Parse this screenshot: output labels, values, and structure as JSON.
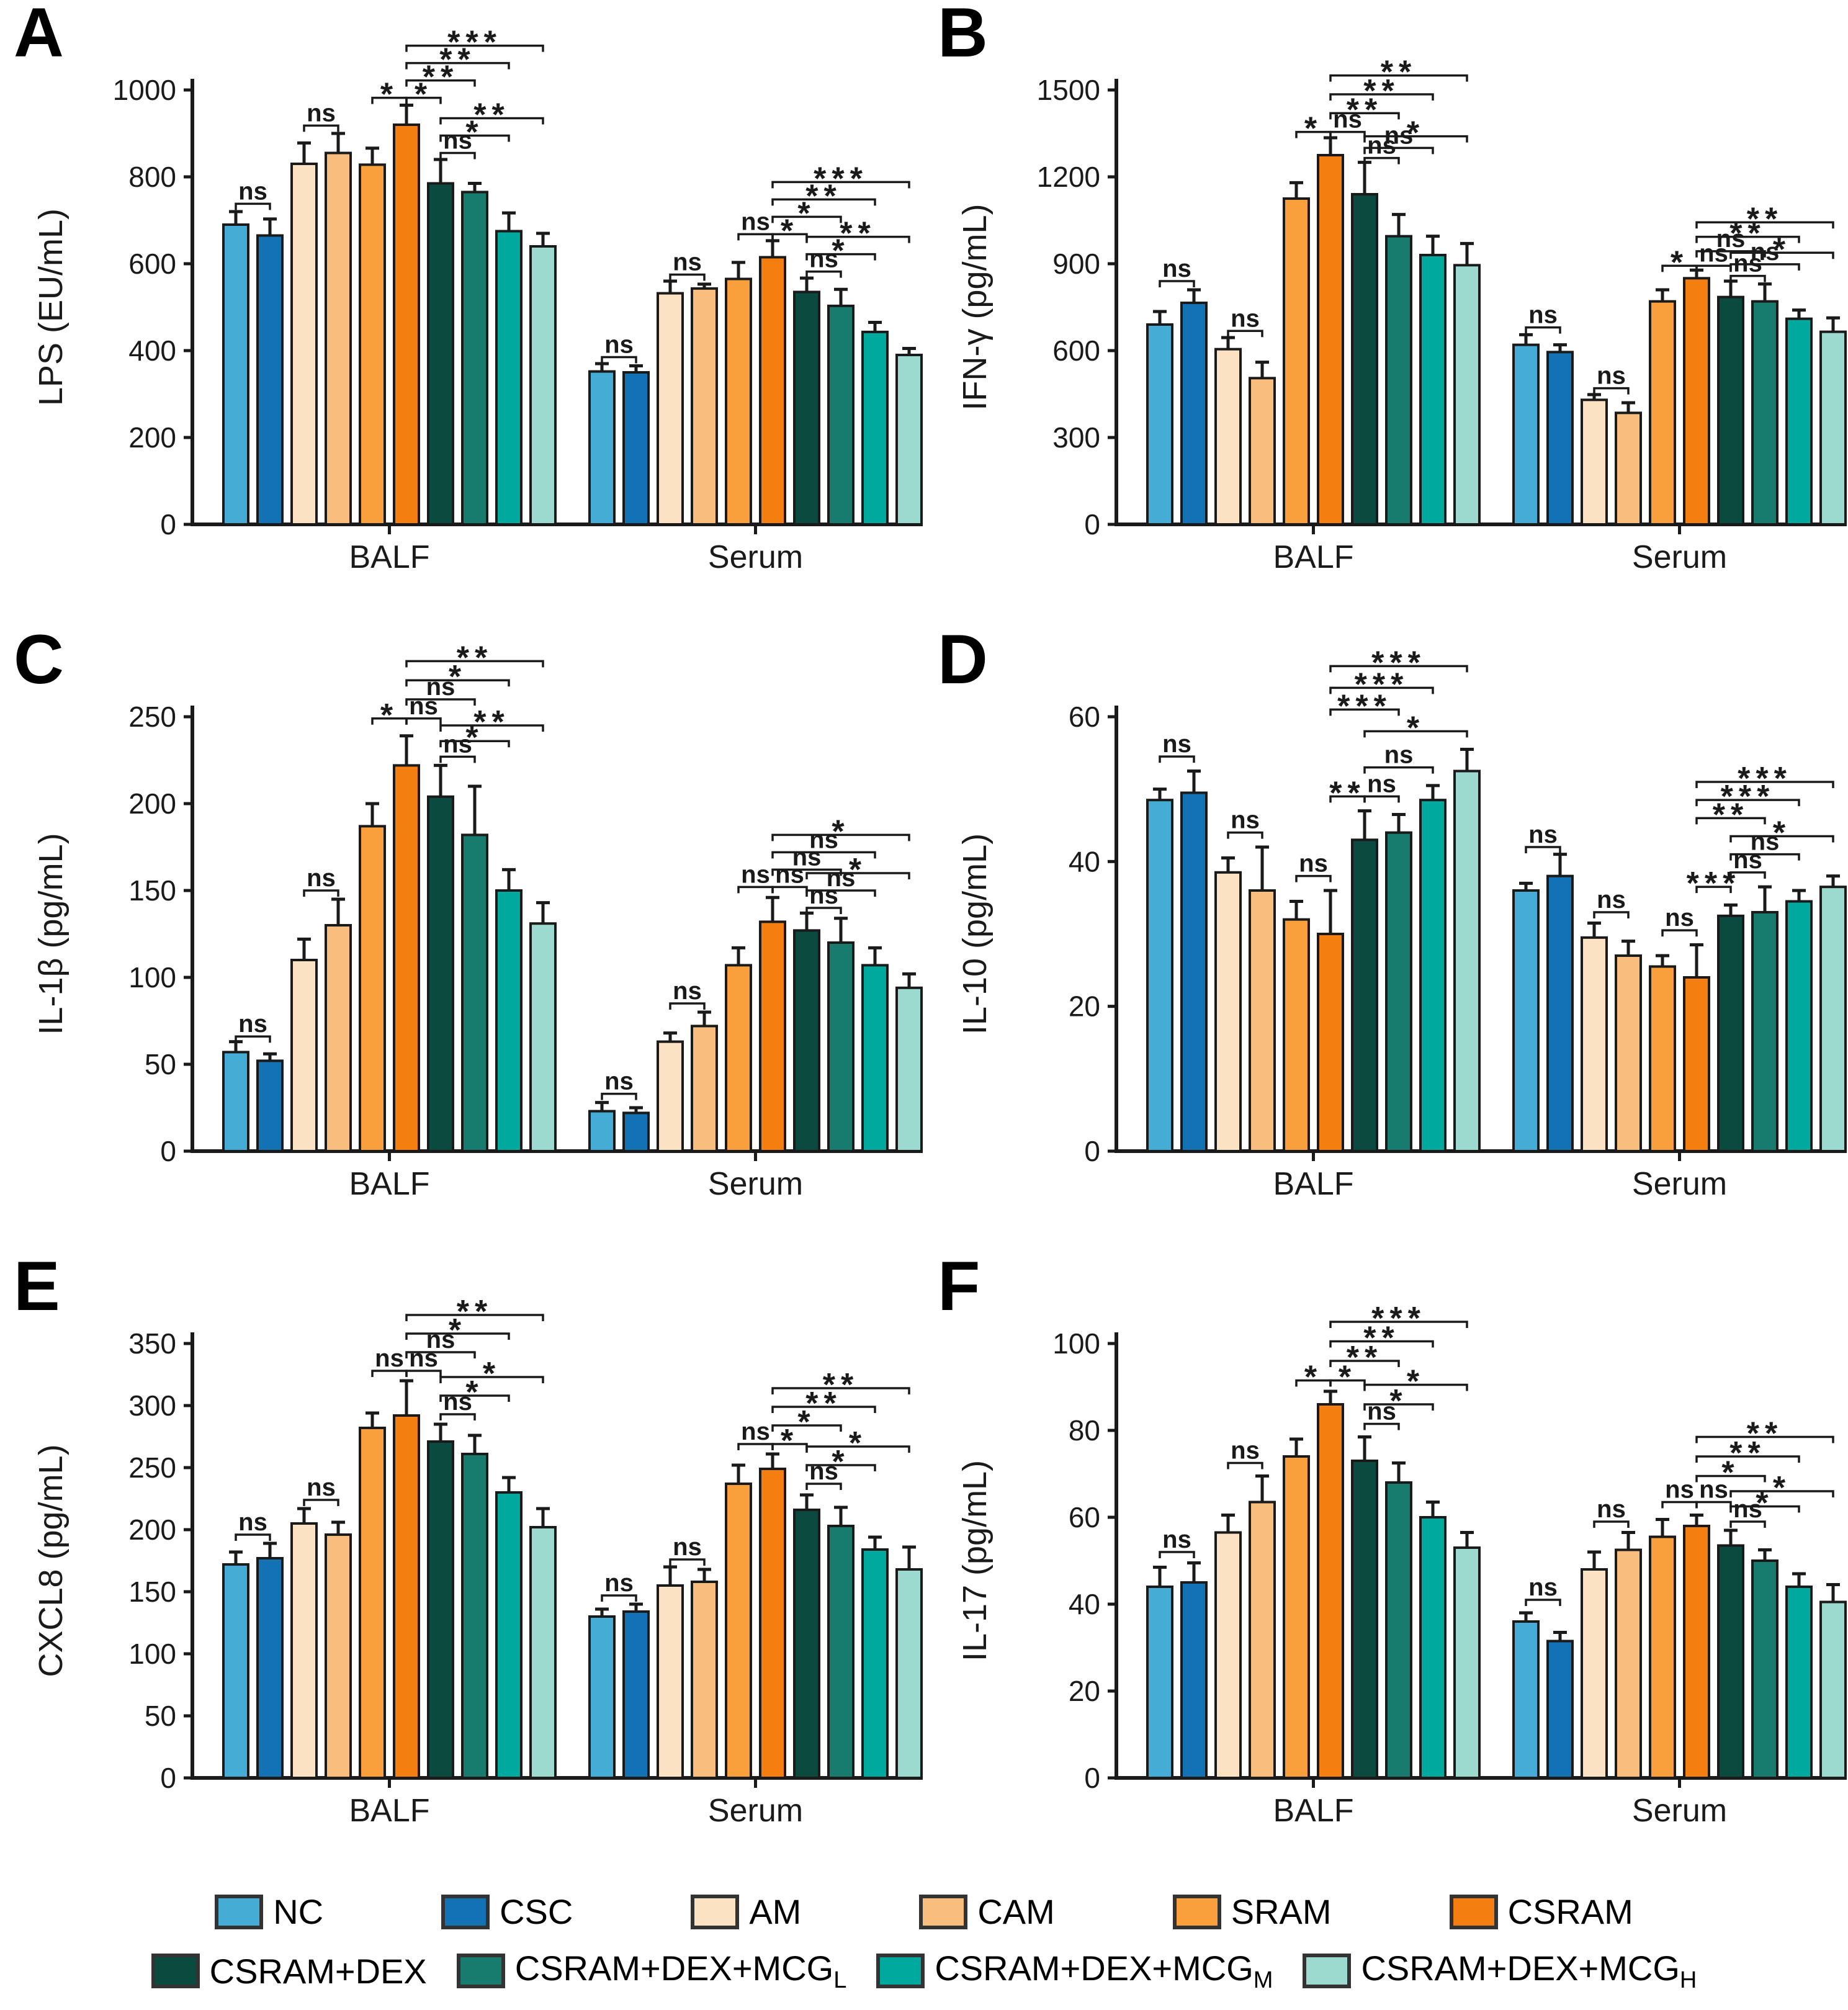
{
  "figure_title": "",
  "categories": [
    "BALF",
    "Serum"
  ],
  "groups": [
    {
      "name": "NC",
      "color": "#45ADD5"
    },
    {
      "name": "CSC",
      "color": "#1272B4"
    },
    {
      "name": "AM",
      "color": "#FBE2C3"
    },
    {
      "name": "CAM",
      "color": "#F9BE7D"
    },
    {
      "name": "SRAM",
      "color": "#F9A03C"
    },
    {
      "name": "CSRAM",
      "color": "#F57E11"
    },
    {
      "name": "CSRAM+DEX",
      "color": "#0B4A3F"
    },
    {
      "name": "CSRAM+DEX+MCG",
      "sub": "L",
      "color": "#177C6E"
    },
    {
      "name": "CSRAM+DEX+MCG",
      "sub": "M",
      "color": "#00A99D"
    },
    {
      "name": "CSRAM+DEX+MCG",
      "sub": "H",
      "color": "#9CDACF"
    }
  ],
  "chart_data": [
    {
      "type": "bar",
      "letter": "A",
      "ylabel": "LPS (EU/mL)",
      "ylim": [
        0,
        1000
      ],
      "yticks": [
        0,
        200,
        400,
        600,
        800,
        1000
      ],
      "categories": [
        "BALF",
        "Serum"
      ],
      "balf": [
        690,
        665,
        830,
        855,
        828,
        920,
        785,
        765,
        675,
        640
      ],
      "balf_err": [
        30,
        38,
        48,
        45,
        38,
        45,
        55,
        20,
        42,
        30
      ],
      "serum": [
        352,
        350,
        532,
        543,
        565,
        615,
        535,
        503,
        443,
        390
      ],
      "serum_err": [
        18,
        15,
        28,
        10,
        38,
        38,
        32,
        38,
        22,
        15
      ],
      "significance": [
        {
          "from": 1,
          "to": 2,
          "label": "ns",
          "y": 738
        },
        {
          "from": 3,
          "to": 4,
          "label": "ns",
          "y": 918
        },
        {
          "from": 5,
          "to": 6,
          "label": "*",
          "y": 982
        },
        {
          "from": 6,
          "to": 7,
          "label": "*",
          "y": 982
        },
        {
          "from": 6,
          "to": 8,
          "label": "**",
          "y": 1022
        },
        {
          "from": 6,
          "to": 9,
          "label": "**",
          "y": 1062
        },
        {
          "from": 6,
          "to": 10,
          "label": "***",
          "y": 1102
        },
        {
          "from": 7,
          "to": 8,
          "label": "ns",
          "y": 855
        },
        {
          "from": 7,
          "to": 9,
          "label": "*",
          "y": 895
        },
        {
          "from": 7,
          "to": 10,
          "label": "**",
          "y": 935
        },
        {
          "from": 11,
          "to": 12,
          "label": "ns",
          "y": 385
        },
        {
          "from": 13,
          "to": 14,
          "label": "ns",
          "y": 575
        },
        {
          "from": 15,
          "to": 16,
          "label": "ns",
          "y": 668
        },
        {
          "from": 16,
          "to": 17,
          "label": "*",
          "y": 668
        },
        {
          "from": 16,
          "to": 18,
          "label": "*",
          "y": 708
        },
        {
          "from": 16,
          "to": 19,
          "label": "**",
          "y": 748
        },
        {
          "from": 16,
          "to": 20,
          "label": "***",
          "y": 788
        },
        {
          "from": 17,
          "to": 18,
          "label": "ns",
          "y": 582
        },
        {
          "from": 17,
          "to": 19,
          "label": "*",
          "y": 622
        },
        {
          "from": 17,
          "to": 20,
          "label": "**",
          "y": 662
        }
      ]
    },
    {
      "type": "bar",
      "letter": "B",
      "ylabel": "IFN-γ (pg/mL)",
      "ylim": [
        0,
        1500
      ],
      "yticks": [
        0,
        300,
        600,
        900,
        1200,
        1500
      ],
      "categories": [
        "BALF",
        "Serum"
      ],
      "balf": [
        690,
        765,
        605,
        505,
        1125,
        1275,
        1140,
        995,
        930,
        895
      ],
      "balf_err": [
        45,
        45,
        40,
        55,
        55,
        60,
        110,
        75,
        65,
        75
      ],
      "serum": [
        620,
        595,
        430,
        385,
        770,
        850,
        785,
        770,
        710,
        665
      ],
      "serum_err": [
        35,
        25,
        18,
        35,
        40,
        28,
        55,
        60,
        30,
        48
      ],
      "significance": [
        {
          "from": 1,
          "to": 2,
          "label": "ns",
          "y": 840
        },
        {
          "from": 3,
          "to": 4,
          "label": "ns",
          "y": 668
        },
        {
          "from": 5,
          "to": 6,
          "label": "*",
          "y": 1355
        },
        {
          "from": 6,
          "to": 7,
          "label": "ns",
          "y": 1355
        },
        {
          "from": 6,
          "to": 8,
          "label": "**",
          "y": 1420
        },
        {
          "from": 6,
          "to": 9,
          "label": "**",
          "y": 1485
        },
        {
          "from": 6,
          "to": 10,
          "label": "**",
          "y": 1550
        },
        {
          "from": 7,
          "to": 8,
          "label": "ns",
          "y": 1265
        },
        {
          "from": 7,
          "to": 9,
          "label": "ns",
          "y": 1300
        },
        {
          "from": 7,
          "to": 10,
          "label": "*",
          "y": 1340
        },
        {
          "from": 11,
          "to": 12,
          "label": "ns",
          "y": 680
        },
        {
          "from": 13,
          "to": 14,
          "label": "ns",
          "y": 470
        },
        {
          "from": 15,
          "to": 16,
          "label": "*",
          "y": 893
        },
        {
          "from": 16,
          "to": 17,
          "label": "ns",
          "y": 893
        },
        {
          "from": 16,
          "to": 18,
          "label": "ns",
          "y": 943
        },
        {
          "from": 16,
          "to": 19,
          "label": "**",
          "y": 993
        },
        {
          "from": 16,
          "to": 20,
          "label": "**",
          "y": 1043
        },
        {
          "from": 17,
          "to": 18,
          "label": "ns",
          "y": 858
        },
        {
          "from": 17,
          "to": 19,
          "label": "ns",
          "y": 898
        },
        {
          "from": 17,
          "to": 20,
          "label": "*",
          "y": 938
        }
      ]
    },
    {
      "type": "bar",
      "letter": "C",
      "ylabel": "IL-1β (pg/mL)",
      "ylim": [
        0,
        250
      ],
      "yticks": [
        0,
        50,
        100,
        150,
        200,
        250
      ],
      "categories": [
        "BALF",
        "Serum"
      ],
      "balf": [
        57,
        52,
        110,
        130,
        187,
        222,
        204,
        182,
        150,
        131
      ],
      "balf_err": [
        6,
        4,
        12,
        15,
        13,
        17,
        18,
        28,
        12,
        12
      ],
      "serum": [
        23,
        22,
        63,
        72,
        107,
        132,
        127,
        120,
        107,
        94
      ],
      "serum_err": [
        5,
        3,
        5,
        8,
        10,
        14,
        10,
        14,
        10,
        8
      ],
      "significance": [
        {
          "from": 1,
          "to": 2,
          "label": "ns",
          "y": 66
        },
        {
          "from": 3,
          "to": 4,
          "label": "ns",
          "y": 150
        },
        {
          "from": 5,
          "to": 6,
          "label": "*",
          "y": 249
        },
        {
          "from": 6,
          "to": 7,
          "label": "ns",
          "y": 249
        },
        {
          "from": 6,
          "to": 8,
          "label": "ns",
          "y": 260
        },
        {
          "from": 6,
          "to": 9,
          "label": "*",
          "y": 271
        },
        {
          "from": 6,
          "to": 10,
          "label": "**",
          "y": 282
        },
        {
          "from": 7,
          "to": 8,
          "label": "ns",
          "y": 227
        },
        {
          "from": 7,
          "to": 9,
          "label": "*",
          "y": 236
        },
        {
          "from": 7,
          "to": 10,
          "label": "**",
          "y": 245
        },
        {
          "from": 11,
          "to": 12,
          "label": "ns",
          "y": 33
        },
        {
          "from": 13,
          "to": 14,
          "label": "ns",
          "y": 85
        },
        {
          "from": 15,
          "to": 16,
          "label": "ns",
          "y": 152
        },
        {
          "from": 16,
          "to": 17,
          "label": "ns",
          "y": 152
        },
        {
          "from": 16,
          "to": 18,
          "label": "ns",
          "y": 162
        },
        {
          "from": 16,
          "to": 19,
          "label": "ns",
          "y": 172
        },
        {
          "from": 16,
          "to": 20,
          "label": "*",
          "y": 182
        },
        {
          "from": 17,
          "to": 18,
          "label": "ns",
          "y": 140
        },
        {
          "from": 17,
          "to": 19,
          "label": "ns",
          "y": 150
        },
        {
          "from": 17,
          "to": 20,
          "label": "*",
          "y": 160
        }
      ]
    },
    {
      "type": "bar",
      "letter": "D",
      "ylabel": "IL-10 (pg/mL)",
      "ylim": [
        0,
        60
      ],
      "yticks": [
        0,
        20,
        40,
        60
      ],
      "categories": [
        "BALF",
        "Serum"
      ],
      "balf": [
        48.5,
        49.5,
        38.5,
        36,
        32,
        30,
        43,
        44,
        48.5,
        52.5
      ],
      "balf_err": [
        1.5,
        3,
        2,
        6,
        2.5,
        6,
        4,
        2.5,
        2,
        3
      ],
      "serum": [
        36,
        38,
        29.5,
        27,
        25.5,
        24,
        32.5,
        33,
        34.5,
        36.5
      ],
      "serum_err": [
        1,
        3,
        2,
        2,
        1.5,
        4.5,
        1.5,
        3.5,
        1.5,
        1.5
      ],
      "significance": [
        {
          "from": 1,
          "to": 2,
          "label": "ns",
          "y": 54.5
        },
        {
          "from": 3,
          "to": 4,
          "label": "ns",
          "y": 44
        },
        {
          "from": 5,
          "to": 6,
          "label": "ns",
          "y": 38
        },
        {
          "from": 6,
          "to": 7,
          "label": "**",
          "y": 49
        },
        {
          "from": 7,
          "to": 8,
          "label": "ns",
          "y": 49
        },
        {
          "from": 7,
          "to": 9,
          "label": "ns",
          "y": 53
        },
        {
          "from": 7,
          "to": 10,
          "label": "*",
          "y": 58
        },
        {
          "from": 6,
          "to": 8,
          "label": "***",
          "y": 61
        },
        {
          "from": 6,
          "to": 9,
          "label": "***",
          "y": 64
        },
        {
          "from": 6,
          "to": 10,
          "label": "***",
          "y": 67
        },
        {
          "from": 11,
          "to": 12,
          "label": "ns",
          "y": 42
        },
        {
          "from": 13,
          "to": 14,
          "label": "ns",
          "y": 33
        },
        {
          "from": 15,
          "to": 16,
          "label": "ns",
          "y": 30.5
        },
        {
          "from": 16,
          "to": 17,
          "label": "***",
          "y": 36.5
        },
        {
          "from": 17,
          "to": 18,
          "label": "ns",
          "y": 38.5
        },
        {
          "from": 17,
          "to": 19,
          "label": "ns",
          "y": 41
        },
        {
          "from": 17,
          "to": 20,
          "label": "*",
          "y": 43.5
        },
        {
          "from": 16,
          "to": 18,
          "label": "**",
          "y": 46
        },
        {
          "from": 16,
          "to": 19,
          "label": "***",
          "y": 48.5
        },
        {
          "from": 16,
          "to": 20,
          "label": "***",
          "y": 51
        }
      ]
    },
    {
      "type": "bar",
      "letter": "E",
      "ylabel": "CXCL8 (pg/mL)",
      "ylim": [
        0,
        350
      ],
      "yticks": [
        0,
        50,
        100,
        150,
        200,
        250,
        300,
        350
      ],
      "categories": [
        "BALF",
        "Serum"
      ],
      "balf": [
        172,
        177,
        205,
        196,
        282,
        292,
        271,
        261,
        230,
        202
      ],
      "balf_err": [
        10,
        12,
        12,
        10,
        12,
        28,
        14,
        15,
        12,
        15
      ],
      "serum": [
        130,
        134,
        155,
        158,
        237,
        249,
        216,
        203,
        184,
        168
      ],
      "serum_err": [
        6,
        6,
        15,
        10,
        15,
        12,
        12,
        15,
        10,
        18
      ],
      "significance": [
        {
          "from": 1,
          "to": 2,
          "label": "ns",
          "y": 196
        },
        {
          "from": 3,
          "to": 4,
          "label": "ns",
          "y": 224
        },
        {
          "from": 5,
          "to": 6,
          "label": "ns",
          "y": 328
        },
        {
          "from": 6,
          "to": 7,
          "label": "ns",
          "y": 328
        },
        {
          "from": 6,
          "to": 8,
          "label": "ns",
          "y": 343
        },
        {
          "from": 6,
          "to": 9,
          "label": "*",
          "y": 358
        },
        {
          "from": 6,
          "to": 10,
          "label": "**",
          "y": 373
        },
        {
          "from": 7,
          "to": 8,
          "label": "ns",
          "y": 293
        },
        {
          "from": 7,
          "to": 9,
          "label": "*",
          "y": 308
        },
        {
          "from": 7,
          "to": 10,
          "label": "*",
          "y": 323
        },
        {
          "from": 11,
          "to": 12,
          "label": "ns",
          "y": 147
        },
        {
          "from": 13,
          "to": 14,
          "label": "ns",
          "y": 176
        },
        {
          "from": 15,
          "to": 16,
          "label": "ns",
          "y": 269
        },
        {
          "from": 16,
          "to": 17,
          "label": "*",
          "y": 269
        },
        {
          "from": 16,
          "to": 18,
          "label": "*",
          "y": 284
        },
        {
          "from": 16,
          "to": 19,
          "label": "**",
          "y": 299
        },
        {
          "from": 16,
          "to": 20,
          "label": "**",
          "y": 314
        },
        {
          "from": 17,
          "to": 18,
          "label": "ns",
          "y": 237
        },
        {
          "from": 17,
          "to": 19,
          "label": "*",
          "y": 252
        },
        {
          "from": 17,
          "to": 20,
          "label": "*",
          "y": 267
        }
      ]
    },
    {
      "type": "bar",
      "letter": "F",
      "ylabel": "IL-17 (pg/mL)",
      "ylim": [
        0,
        100
      ],
      "yticks": [
        0,
        20,
        40,
        60,
        80,
        100
      ],
      "categories": [
        "BALF",
        "Serum"
      ],
      "balf": [
        44,
        45,
        56.5,
        63.5,
        74,
        86,
        73,
        68,
        60,
        53
      ],
      "balf_err": [
        4.5,
        4.5,
        4,
        6,
        4,
        3,
        5.5,
        4.5,
        3.5,
        3.5
      ],
      "serum": [
        36,
        31.5,
        48,
        52.5,
        55.5,
        58,
        53.5,
        50,
        44,
        40.5
      ],
      "serum_err": [
        2,
        2,
        4,
        4,
        4,
        2.5,
        3.5,
        2.5,
        3,
        4
      ],
      "significance": [
        {
          "from": 1,
          "to": 2,
          "label": "ns",
          "y": 52
        },
        {
          "from": 3,
          "to": 4,
          "label": "ns",
          "y": 72.5
        },
        {
          "from": 5,
          "to": 6,
          "label": "*",
          "y": 91.5
        },
        {
          "from": 6,
          "to": 7,
          "label": "*",
          "y": 91.5
        },
        {
          "from": 6,
          "to": 8,
          "label": "**",
          "y": 96
        },
        {
          "from": 6,
          "to": 9,
          "label": "**",
          "y": 100.5
        },
        {
          "from": 6,
          "to": 10,
          "label": "***",
          "y": 105
        },
        {
          "from": 7,
          "to": 8,
          "label": "ns",
          "y": 81.5
        },
        {
          "from": 7,
          "to": 9,
          "label": "*",
          "y": 86
        },
        {
          "from": 7,
          "to": 10,
          "label": "*",
          "y": 90.5
        },
        {
          "from": 11,
          "to": 12,
          "label": "ns",
          "y": 41
        },
        {
          "from": 13,
          "to": 14,
          "label": "ns",
          "y": 59
        },
        {
          "from": 15,
          "to": 16,
          "label": "ns",
          "y": 63.5
        },
        {
          "from": 16,
          "to": 17,
          "label": "ns",
          "y": 63.5
        },
        {
          "from": 16,
          "to": 18,
          "label": "*",
          "y": 69.5
        },
        {
          "from": 16,
          "to": 19,
          "label": "**",
          "y": 74
        },
        {
          "from": 16,
          "to": 20,
          "label": "**",
          "y": 78.5
        },
        {
          "from": 17,
          "to": 18,
          "label": "ns",
          "y": 59
        },
        {
          "from": 17,
          "to": 19,
          "label": "*",
          "y": 62.5
        },
        {
          "from": 17,
          "to": 20,
          "label": "*",
          "y": 66
        }
      ]
    }
  ],
  "style": {
    "ink": "#1a1a1a",
    "background": "#ffffff"
  }
}
